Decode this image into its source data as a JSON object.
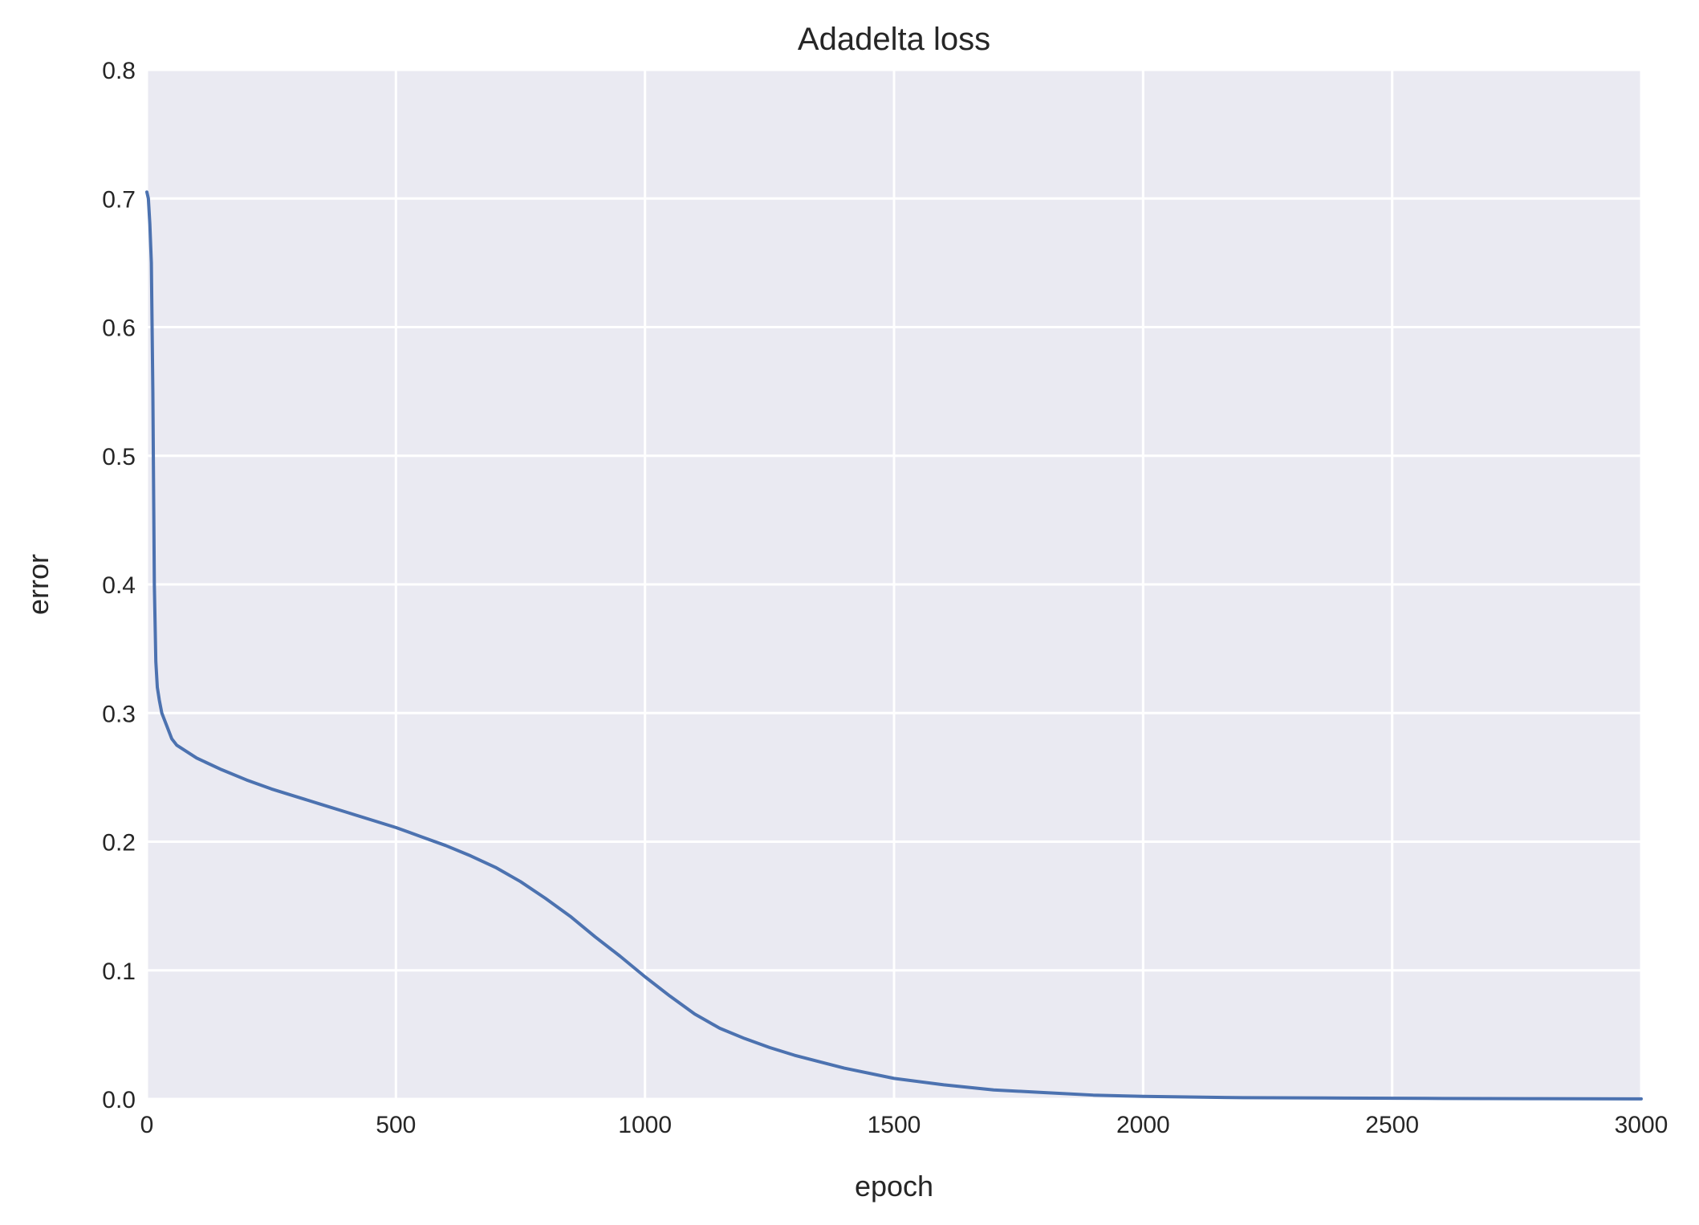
{
  "chart_data": {
    "type": "line",
    "title": "Adadelta loss",
    "xlabel": "epoch",
    "ylabel": "error",
    "xlim": [
      0,
      3000
    ],
    "ylim": [
      0,
      0.8
    ],
    "xticks": [
      0,
      500,
      1000,
      1500,
      2000,
      2500,
      3000
    ],
    "yticks": [
      0.0,
      0.1,
      0.2,
      0.3,
      0.4,
      0.5,
      0.6,
      0.7,
      0.8
    ],
    "xtick_labels": [
      "0",
      "500",
      "1000",
      "1500",
      "2000",
      "2500",
      "3000"
    ],
    "ytick_labels": [
      "0.0",
      "0.1",
      "0.2",
      "0.3",
      "0.4",
      "0.5",
      "0.6",
      "0.7",
      "0.8"
    ],
    "grid": true,
    "background_color": "#eaeaf2",
    "series": [
      {
        "color": "#4c72b0",
        "x": [
          0,
          3,
          6,
          9,
          12,
          15,
          18,
          21,
          25,
          30,
          40,
          50,
          60,
          80,
          100,
          150,
          200,
          250,
          300,
          350,
          400,
          450,
          500,
          550,
          600,
          650,
          700,
          750,
          800,
          850,
          900,
          950,
          1000,
          1050,
          1100,
          1150,
          1200,
          1250,
          1300,
          1400,
          1500,
          1600,
          1700,
          1800,
          1900,
          2000,
          2200,
          2400,
          2600,
          2800,
          3000
        ],
        "y": [
          0.705,
          0.7,
          0.68,
          0.65,
          0.55,
          0.4,
          0.34,
          0.32,
          0.31,
          0.3,
          0.29,
          0.28,
          0.275,
          0.27,
          0.265,
          0.256,
          0.248,
          0.241,
          0.235,
          0.229,
          0.223,
          0.217,
          0.211,
          0.204,
          0.197,
          0.189,
          0.18,
          0.169,
          0.156,
          0.142,
          0.126,
          0.111,
          0.095,
          0.08,
          0.066,
          0.055,
          0.047,
          0.04,
          0.034,
          0.024,
          0.016,
          0.011,
          0.007,
          0.005,
          0.003,
          0.002,
          0.001,
          0.0007,
          0.0004,
          0.0002,
          0.0001
        ]
      }
    ]
  }
}
